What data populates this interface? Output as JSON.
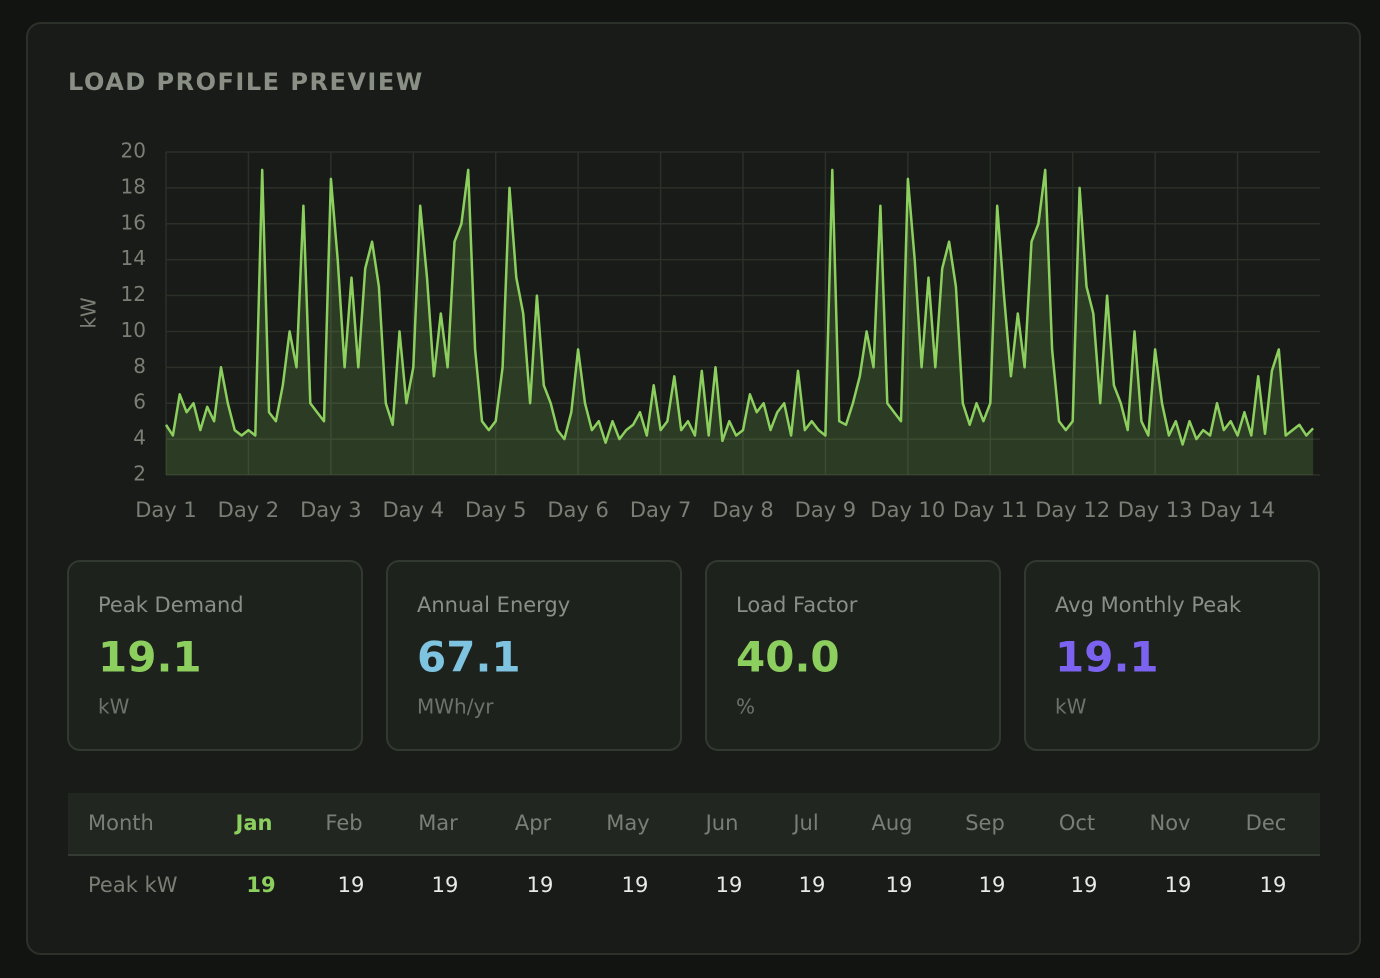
{
  "header": {
    "title": "LOAD PROFILE PREVIEW"
  },
  "chart_data": {
    "type": "line",
    "y_label": "kW",
    "categories": [
      "Day 1",
      null,
      null,
      null,
      null,
      null,
      null,
      null,
      null,
      null,
      null,
      null,
      "Day 2",
      null,
      null,
      null,
      null,
      null,
      null,
      null,
      null,
      null,
      null,
      null,
      "Day 3",
      null,
      null,
      null,
      null,
      null,
      null,
      null,
      null,
      null,
      null,
      null,
      "Day 4",
      null,
      null,
      null,
      null,
      null,
      null,
      null,
      null,
      null,
      null,
      null,
      "Day 5",
      null,
      null,
      null,
      null,
      null,
      null,
      null,
      null,
      null,
      null,
      null,
      "Day 6",
      null,
      null,
      null,
      null,
      null,
      null,
      null,
      null,
      null,
      null,
      null,
      "Day 7",
      null,
      null,
      null,
      null,
      null,
      null,
      null,
      null,
      null,
      null,
      null,
      "Day 8",
      null,
      null,
      null,
      null,
      null,
      null,
      null,
      null,
      null,
      null,
      null,
      "Day 9",
      null,
      null,
      null,
      null,
      null,
      null,
      null,
      null,
      null,
      null,
      null,
      "Day 10",
      null,
      null,
      null,
      null,
      null,
      null,
      null,
      null,
      null,
      null,
      null,
      "Day 11",
      null,
      null,
      null,
      null,
      null,
      null,
      null,
      null,
      null,
      null,
      null,
      "Day 12",
      null,
      null,
      null,
      null,
      null,
      null,
      null,
      null,
      null,
      null,
      null,
      "Day 13",
      null,
      null,
      null,
      null,
      null,
      null,
      null,
      null,
      null,
      null,
      null,
      "Day 14",
      null,
      null,
      null,
      null,
      null,
      null,
      null,
      null,
      null,
      null,
      null
    ],
    "series": [
      {
        "name": "Load",
        "color": "#8ccf5e",
        "values": [
          4.8,
          4.2,
          6.5,
          5.5,
          6,
          4.5,
          5.8,
          5,
          8,
          6,
          4.5,
          4.2,
          4.5,
          4.2,
          19,
          5.5,
          5,
          7,
          10,
          8,
          17,
          6,
          5.5,
          5,
          18.5,
          14,
          8,
          13,
          8,
          13.5,
          15,
          12.5,
          6,
          4.8,
          10,
          6,
          8,
          17,
          13,
          7.5,
          11,
          8,
          15,
          16,
          19,
          9,
          5,
          4.5,
          5,
          8,
          18,
          13,
          11,
          6,
          12,
          7,
          6,
          4.5,
          4,
          5.5,
          9,
          6,
          4.5,
          5,
          3.8,
          5,
          4,
          4.5,
          4.8,
          5.5,
          4.2,
          7,
          4.5,
          5,
          7.5,
          4.5,
          5,
          4.2,
          7.8,
          4.2,
          8,
          3.9,
          5,
          4.2,
          4.5,
          6.5,
          5.5,
          6,
          4.5,
          5.5,
          6,
          4.2,
          7.8,
          4.5,
          5,
          4.5,
          4.2,
          19,
          5,
          4.8,
          6,
          7.5,
          10,
          8,
          17,
          6,
          5.5,
          5,
          18.5,
          14,
          8,
          13,
          8,
          13.5,
          15,
          12.5,
          6,
          4.8,
          6,
          5,
          6,
          17,
          12,
          7.5,
          11,
          8,
          15,
          16,
          19,
          9,
          5,
          4.5,
          5,
          18,
          12.5,
          11,
          6,
          12,
          7,
          6,
          4.5,
          10,
          5,
          4.2,
          9,
          6,
          4.2,
          5,
          3.7,
          5,
          4,
          4.5,
          4.2,
          6,
          4.5,
          5,
          4.2,
          5.5,
          4.2,
          7.5,
          4.3,
          7.8,
          9,
          4.2,
          4.5,
          4.8,
          4.2,
          4.6
        ]
      }
    ],
    "ylim": [
      2,
      20
    ],
    "yticks": [
      2,
      4,
      6,
      8,
      10,
      12,
      14,
      16,
      18,
      20
    ],
    "grid": true
  },
  "cards": [
    {
      "label": "Peak Demand",
      "value": "19.1",
      "unit": "kW",
      "color": "#8ccf5e"
    },
    {
      "label": "Annual Energy",
      "value": "67.1",
      "unit": "MWh/yr",
      "color": "#7ec3e0"
    },
    {
      "label": "Load Factor",
      "value": "40.0",
      "unit": "%",
      "color": "#8ccf5e"
    },
    {
      "label": "Avg Monthly Peak",
      "value": "19.1",
      "unit": "kW",
      "color": "#7b63f0"
    }
  ],
  "table": {
    "header": [
      "Month",
      "Jan",
      "Feb",
      "Mar",
      "Apr",
      "May",
      "Jun",
      "Jul",
      "Aug",
      "Sep",
      "Oct",
      "Nov",
      "Dec"
    ],
    "rows": [
      [
        "Peak kW",
        19,
        19,
        19,
        19,
        19,
        19,
        19,
        19,
        19,
        19,
        19,
        19
      ]
    ]
  }
}
